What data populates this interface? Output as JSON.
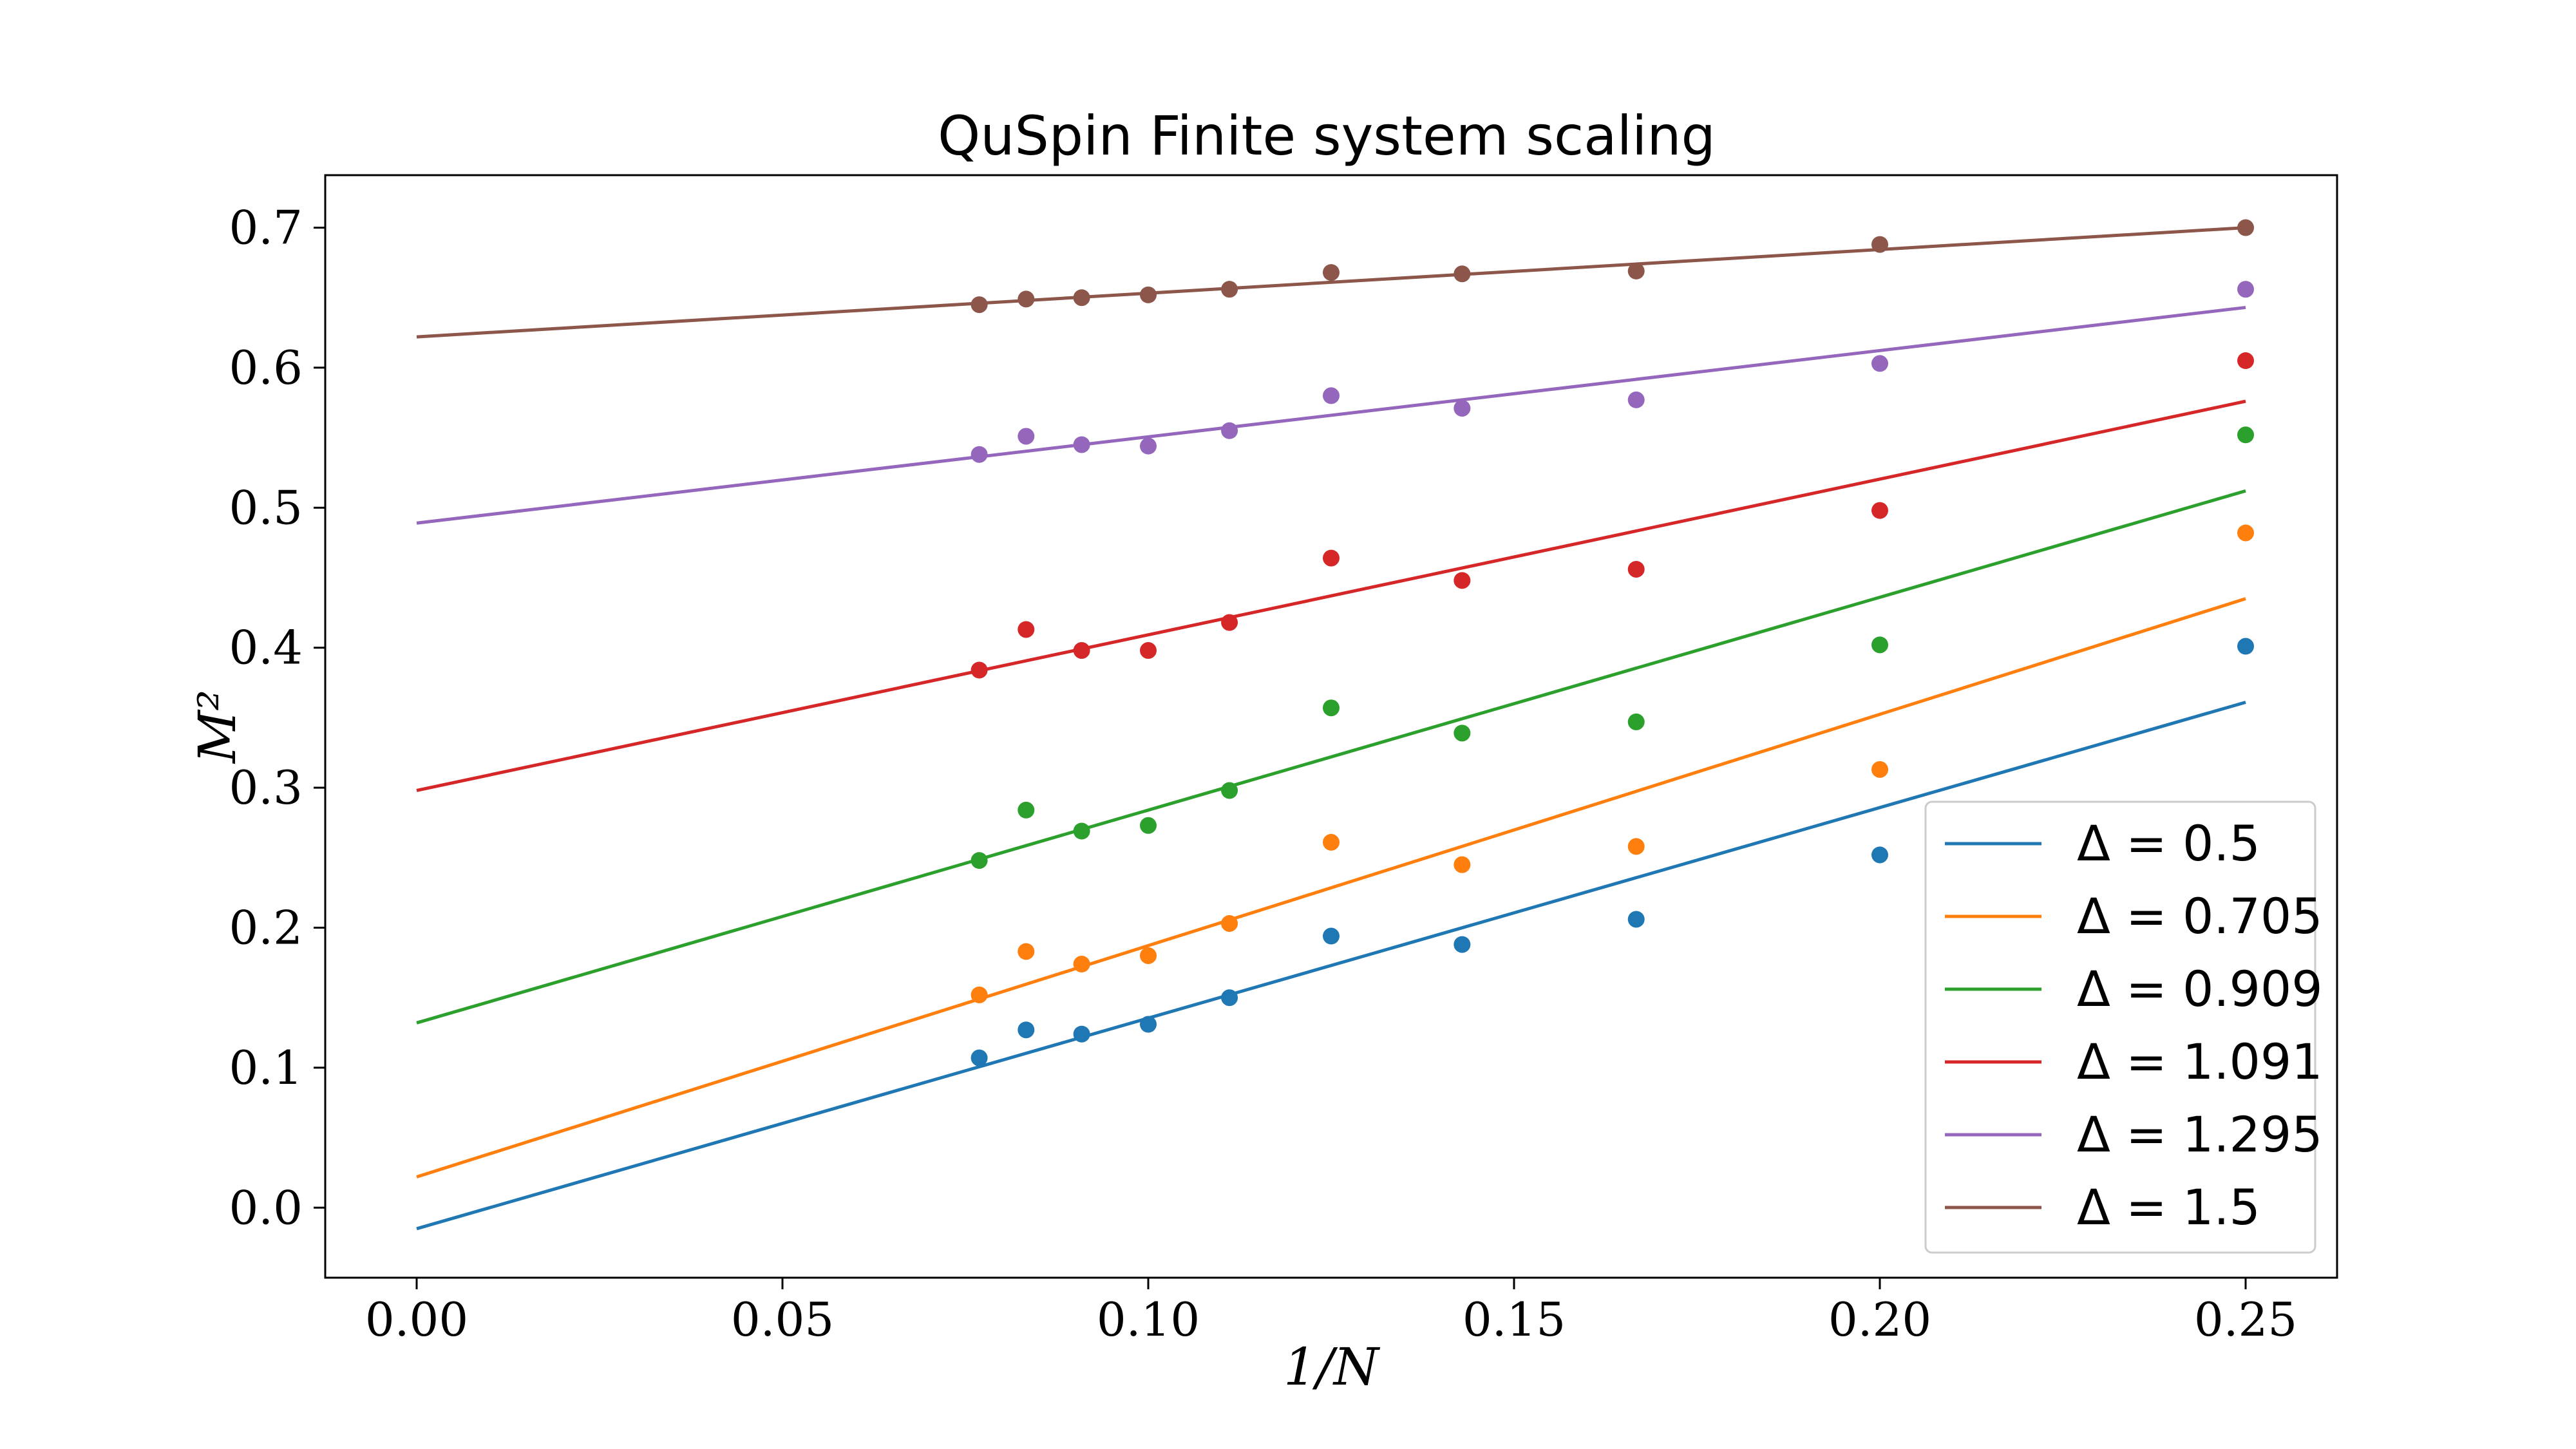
{
  "chart_data": {
    "type": "scatter",
    "title": "QuSpin Finite system scaling",
    "xlabel": "1/N",
    "ylabel": "M²",
    "xlim": [
      -0.0125,
      0.2625
    ],
    "ylim": [
      -0.05,
      0.7375
    ],
    "xticks": [
      0.0,
      0.05,
      0.1,
      0.15,
      0.2,
      0.25
    ],
    "xtick_labels": [
      "0.00",
      "0.05",
      "0.10",
      "0.15",
      "0.20",
      "0.25"
    ],
    "yticks": [
      0.0,
      0.1,
      0.2,
      0.3,
      0.4,
      0.5,
      0.6,
      0.7
    ],
    "ytick_labels": [
      "0.0",
      "0.1",
      "0.2",
      "0.3",
      "0.4",
      "0.5",
      "0.6",
      "0.7"
    ],
    "grid": false,
    "legend_position": "lower-right",
    "x": [
      0.0769,
      0.0833,
      0.0909,
      0.1,
      0.1111,
      0.125,
      0.1429,
      0.1667,
      0.2,
      0.25
    ],
    "series": [
      {
        "name": "Δ = 0.5",
        "color": "#1f77b4",
        "values": [
          0.107,
          0.127,
          0.124,
          0.131,
          0.15,
          0.194,
          0.188,
          0.206,
          0.252,
          0.401
        ],
        "fit": [
          [
            0.0,
            -0.015
          ],
          [
            0.25,
            0.361
          ]
        ]
      },
      {
        "name": "Δ = 0.705",
        "color": "#ff7f0e",
        "values": [
          0.152,
          0.183,
          0.174,
          0.18,
          0.203,
          0.261,
          0.245,
          0.258,
          0.313,
          0.482
        ],
        "fit": [
          [
            0.0,
            0.022
          ],
          [
            0.25,
            0.435
          ]
        ]
      },
      {
        "name": "Δ = 0.909",
        "color": "#2ca02c",
        "values": [
          0.248,
          0.284,
          0.269,
          0.273,
          0.298,
          0.357,
          0.339,
          0.347,
          0.402,
          0.552
        ],
        "fit": [
          [
            0.0,
            0.132
          ],
          [
            0.25,
            0.512
          ]
        ]
      },
      {
        "name": "Δ = 1.091",
        "color": "#d62728",
        "values": [
          0.384,
          0.413,
          0.398,
          0.398,
          0.418,
          0.464,
          0.448,
          0.456,
          0.498,
          0.605
        ],
        "fit": [
          [
            0.0,
            0.298
          ],
          [
            0.25,
            0.576
          ]
        ]
      },
      {
        "name": "Δ = 1.295",
        "color": "#9467bd",
        "values": [
          0.538,
          0.551,
          0.545,
          0.544,
          0.555,
          0.58,
          0.571,
          0.577,
          0.603,
          0.656
        ],
        "fit": [
          [
            0.0,
            0.489
          ],
          [
            0.25,
            0.643
          ]
        ]
      },
      {
        "name": "Δ = 1.5",
        "color": "#8c564b",
        "values": [
          0.645,
          0.649,
          0.65,
          0.652,
          0.656,
          0.668,
          0.667,
          0.669,
          0.688,
          0.7
        ],
        "fit": [
          [
            0.0,
            0.622
          ],
          [
            0.25,
            0.7
          ]
        ]
      }
    ]
  }
}
